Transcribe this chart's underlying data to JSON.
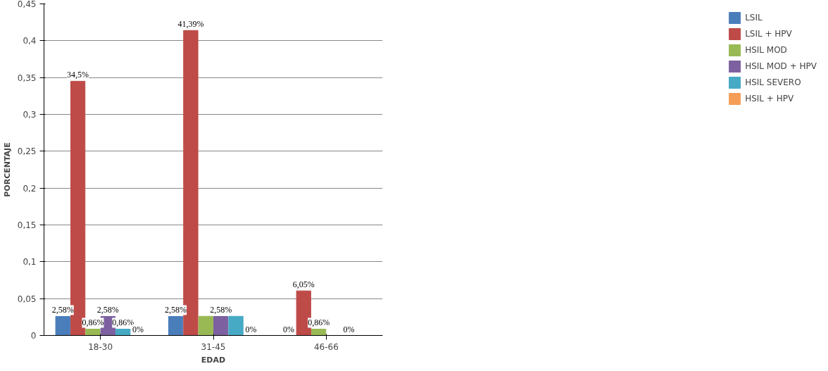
{
  "chart_data": {
    "type": "bar",
    "xlabel": "EDAD",
    "ylabel": "PORCENTAJE",
    "categories": [
      "18-30",
      "31-45",
      "46-66"
    ],
    "series": [
      {
        "name": "LSIL",
        "color": "#4a7ebb",
        "values": [
          0.0258,
          0.0258,
          0
        ],
        "value_labels": [
          "2,58%",
          "2,58%",
          "0%"
        ]
      },
      {
        "name": "LSIL + HPV",
        "color": "#be4b48",
        "values": [
          0.345,
          0.4139,
          0.0605
        ],
        "value_labels": [
          "34,5%",
          "41,39%",
          "6,05%"
        ]
      },
      {
        "name": "HSIL MOD",
        "color": "#98b954",
        "values": [
          0.0086,
          0.026,
          0.0086
        ],
        "value_labels": [
          "0,86%",
          null,
          "0,86%"
        ]
      },
      {
        "name": "HSIL MOD + HPV",
        "color": "#7d60a0",
        "values": [
          0.0258,
          0.0258,
          0
        ],
        "value_labels": [
          "2,58%",
          "2,58%",
          null
        ]
      },
      {
        "name": "HSIL SEVERO",
        "color": "#46aac5",
        "values": [
          0.0086,
          0.026,
          0
        ],
        "value_labels": [
          "0,86%",
          null,
          "0%"
        ]
      },
      {
        "name": "HSIL + HPV",
        "color": "#f59d56",
        "values": [
          0,
          0,
          0
        ],
        "value_labels": [
          "0%",
          "0%",
          null
        ]
      }
    ],
    "ylim": [
      0,
      0.45
    ],
    "yticks": [
      0,
      {
        "value": 0.05,
        "label": "0,05"
      },
      {
        "value": 0.1,
        "label": "0,1"
      },
      {
        "value": 0.15,
        "label": "0,15"
      },
      {
        "value": 0.2,
        "label": "0,2"
      },
      {
        "value": 0.25,
        "label": "0,25"
      },
      {
        "value": 0.3,
        "label": "0,3"
      },
      {
        "value": 0.35,
        "label": "0,35"
      },
      {
        "value": 0.4,
        "label": "0,4"
      },
      {
        "value": 0.45,
        "label": "0,45"
      }
    ],
    "grid": "y",
    "legend": "right"
  }
}
